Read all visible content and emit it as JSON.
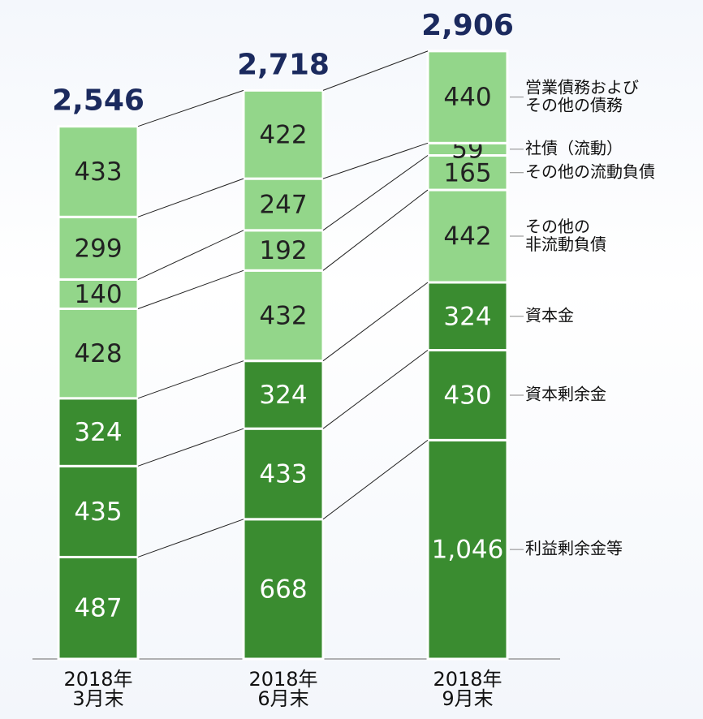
{
  "chart_data": {
    "type": "stacked_bar",
    "categories": [
      "2018年\n3月末",
      "2018年\n6月末",
      "2018年\n9月末"
    ],
    "series": [
      {
        "name": "利益剰余金等",
        "color": "#3a8c30",
        "values": [
          487,
          668,
          1046
        ],
        "value_labels": [
          "487",
          "668",
          "1,046"
        ]
      },
      {
        "name": "資本剰余金",
        "color": "#3a8c30",
        "values": [
          435,
          433,
          430
        ]
      },
      {
        "name": "資本金",
        "color": "#3a8c30",
        "values": [
          324,
          324,
          324
        ]
      },
      {
        "name": "その他の\n非流動負債",
        "color": "#93d68a",
        "values": [
          428,
          432,
          442
        ]
      },
      {
        "name": "その他の流動負債",
        "color": "#93d68a",
        "values": [
          140,
          192,
          165
        ]
      },
      {
        "name": "社債（流動）",
        "color": "#93d68a",
        "values": [
          299,
          247,
          59
        ]
      },
      {
        "name": "営業債務および\nその他の債務",
        "color": "#93d68a",
        "values": [
          433,
          422,
          440
        ]
      }
    ],
    "totals": {
      "values": [
        2546,
        2718,
        2906
      ],
      "value_labels": [
        "2,546",
        "2,718",
        "2,906"
      ]
    },
    "ylim": [
      0,
      3150
    ]
  }
}
